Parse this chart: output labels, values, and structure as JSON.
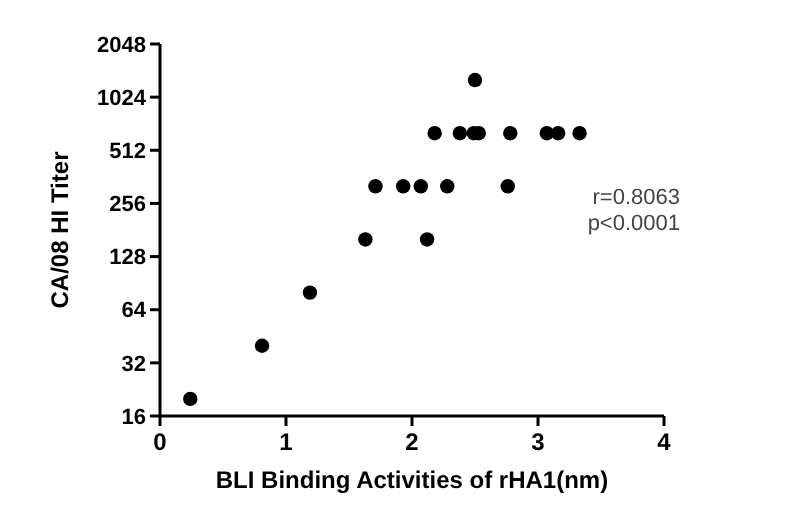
{
  "chart_data": {
    "type": "scatter",
    "xlabel": "BLI Binding Activities of rHA1(nm)",
    "ylabel": "CA/08 HI Titer",
    "log": "y",
    "marker": "circle",
    "grid": false,
    "x": [
      0.24,
      0.81,
      1.19,
      1.63,
      1.71,
      1.93,
      2.07,
      2.12,
      2.18,
      2.28,
      2.38,
      2.49,
      2.5,
      2.53,
      2.76,
      2.78,
      3.07,
      3.16,
      3.33
    ],
    "series": [
      {
        "color": "#000000",
        "values": [
          20,
          40,
          80,
          160,
          320,
          320,
          320,
          160,
          640,
          320,
          640,
          640,
          1280,
          640,
          320,
          640,
          640,
          640,
          640
        ]
      }
    ],
    "xlim": [
      0,
      4
    ],
    "xticks": [
      0,
      1,
      2,
      3,
      4
    ],
    "ylim": [
      16,
      2048
    ],
    "yticks": [
      16,
      32,
      64,
      128,
      256,
      512,
      1024,
      2048
    ],
    "annotations": [
      "r=0.8063",
      "p<0.0001"
    ]
  }
}
